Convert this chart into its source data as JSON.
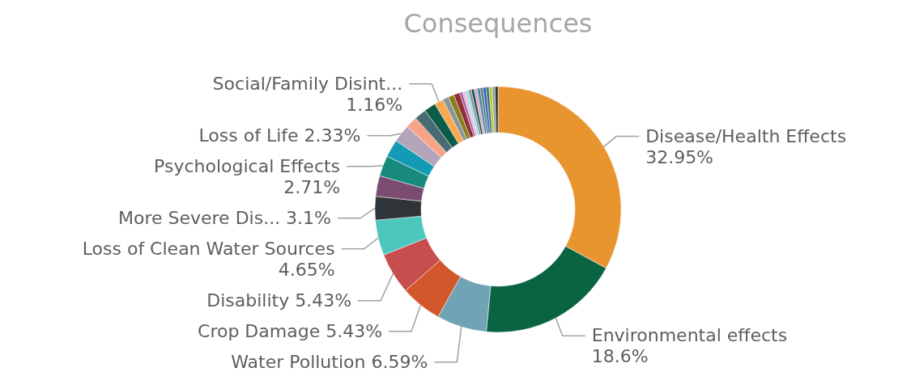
{
  "chart_data": {
    "type": "donut",
    "title": "Consequences",
    "categories": [
      "Disease/Health Effects",
      "Environmental effects",
      "Water Pollution",
      "Crop Damage",
      "Disability",
      "Loss of Clean Water Sources",
      "More Severe Dis...",
      null,
      "Psychological Effects",
      null,
      "Loss of Life",
      null,
      null,
      null,
      "Social/Family Disint...",
      null,
      null,
      null,
      null,
      null,
      null,
      null,
      null,
      null,
      null,
      null,
      null,
      null,
      null,
      null,
      null
    ],
    "values": [
      32.95,
      18.6,
      6.59,
      5.43,
      5.43,
      4.65,
      3.1,
      2.71,
      2.71,
      2.33,
      2.33,
      1.55,
      1.55,
      1.55,
      1.16,
      0.78,
      0.78,
      0.78,
      0.39,
      0.39,
      0.39,
      0.39,
      0.39,
      0.39,
      0.39,
      0.39,
      0.39,
      0.39,
      0.39,
      0.39,
      0.39
    ],
    "colors": [
      "#e8942f",
      "#0a6341",
      "#6fa3b5",
      "#d2572a",
      "#c84d4f",
      "#4cc7bd",
      "#2e3437",
      "#7c4b72",
      "#178a7b",
      "#139bb5",
      "#b3a4b9",
      "#f6a388",
      "#4a6a72",
      "#0b5c4a",
      "#f9a84e",
      "#8a959a",
      "#8b7d1a",
      "#8c3034",
      "#a85c9c",
      "#e1bfd1",
      "#a9d8e6",
      "#7e9a97",
      "#1e4f5a",
      "#e0a6b8",
      "#3d87a8",
      "#6f7a80",
      "#1e6fc0",
      "#5a6870",
      "#a6d21f",
      "#98a1a6",
      "#28343a"
    ],
    "value_labels": [
      "32.95%",
      "18.6%",
      "6.59%",
      "5.43%",
      "5.43%",
      "4.65%",
      "3.1%",
      null,
      "2.71%",
      null,
      "2.33%",
      null,
      null,
      null,
      "1.16%",
      null,
      null,
      null,
      null,
      null,
      null,
      null,
      null,
      null,
      null,
      null,
      null,
      null,
      null,
      null,
      null
    ]
  }
}
